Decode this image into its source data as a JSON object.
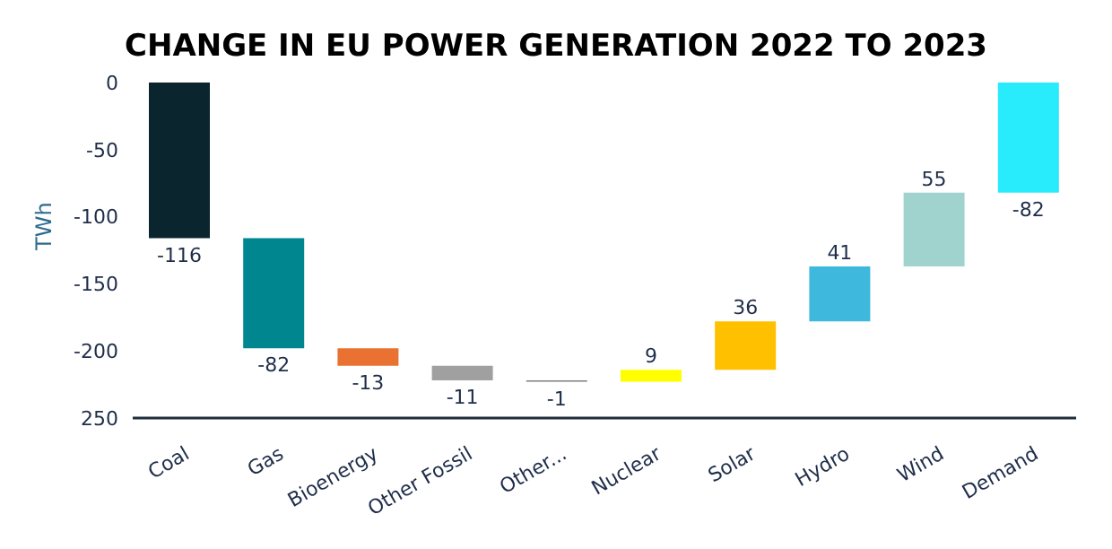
{
  "chart_data": {
    "type": "bar",
    "title": "CHANGE IN EU POWER GENERATION 2022 TO 2023",
    "ylabel": "TWh",
    "categories": [
      "Coal",
      "Gas",
      "Bioenergy",
      "Other Fossil",
      "Other...",
      "Nuclear",
      "Solar",
      "Hydro",
      "Wind",
      "Demand"
    ],
    "values": [
      -116,
      -82,
      -13,
      -11,
      -1,
      9,
      36,
      41,
      55,
      -82
    ],
    "base": [
      0,
      -116,
      -198,
      -211,
      -222,
      -223,
      -214,
      -178,
      -137,
      0
    ],
    "colors": [
      "#0a252d",
      "#00868f",
      "#e97132",
      "#a0a0a0",
      "#7f7f7f",
      "#ffff00",
      "#ffc000",
      "#3eb8dc",
      "#a1d3ce",
      "#28ebfc"
    ],
    "ylim": [
      -250,
      0
    ],
    "yticks": [
      0,
      -50,
      -100,
      -150,
      -200,
      {
        "value": -250,
        "label": "250"
      }
    ],
    "data_labels": true,
    "grid": false,
    "legend": false
  }
}
